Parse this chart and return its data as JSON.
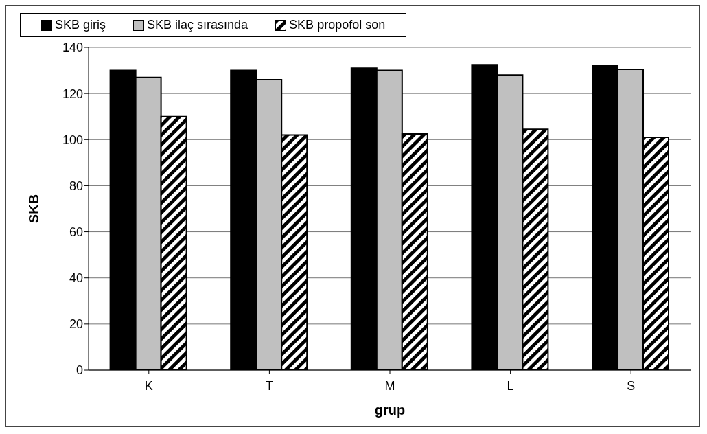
{
  "chart_data": {
    "type": "bar",
    "xlabel": "grup",
    "ylabel": "SKB",
    "categories": [
      "K",
      "T",
      "M",
      "L",
      "S"
    ],
    "series": [
      {
        "name": "SKB giriş",
        "color": "#000000",
        "values": [
          130,
          130,
          131,
          132.5,
          132
        ]
      },
      {
        "name": "SKB ilaç sırasında",
        "color": "#c0c0c0",
        "values": [
          127,
          126,
          130,
          128,
          130.5
        ]
      },
      {
        "name": "SKB propofol son",
        "color": "#000000",
        "values": [
          110,
          102,
          102.5,
          104.5,
          101
        ]
      }
    ],
    "ylim": [
      0,
      140
    ],
    "yticks": [
      0,
      20,
      40,
      60,
      80,
      100,
      120,
      140
    ],
    "grid": "y",
    "legend": "top"
  }
}
